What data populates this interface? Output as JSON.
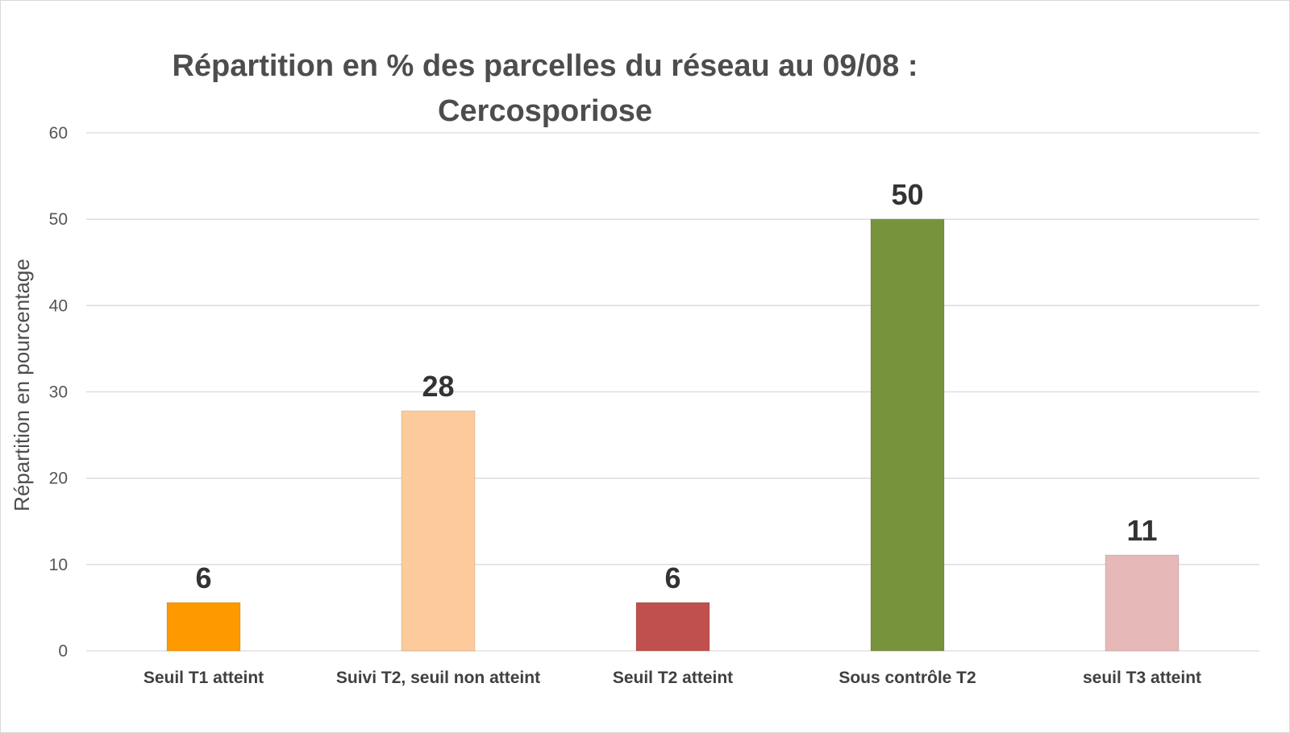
{
  "chart_data": {
    "type": "bar",
    "title": "Répartition en % des parcelles du réseau au 09/08 :",
    "subtitle": "Cercosporiose",
    "xlabel": "",
    "ylabel": "Répartition en pourcentage",
    "ylim": [
      0,
      60
    ],
    "yticks": [
      0,
      10,
      20,
      30,
      40,
      50,
      60
    ],
    "grid": true,
    "categories": [
      "Seuil T1 atteint",
      "Suivi T2, seuil non atteint",
      "Seuil T2 atteint",
      "Sous contrôle T2",
      "seuil T3 atteint"
    ],
    "values": [
      5.6,
      27.8,
      5.6,
      50,
      11.1
    ],
    "data_labels": [
      "6",
      "28",
      "6",
      "50",
      "11"
    ],
    "colors": [
      "#ff9900",
      "#fdcb9b",
      "#c0504d",
      "#77933c",
      "#e6b9b8"
    ]
  }
}
